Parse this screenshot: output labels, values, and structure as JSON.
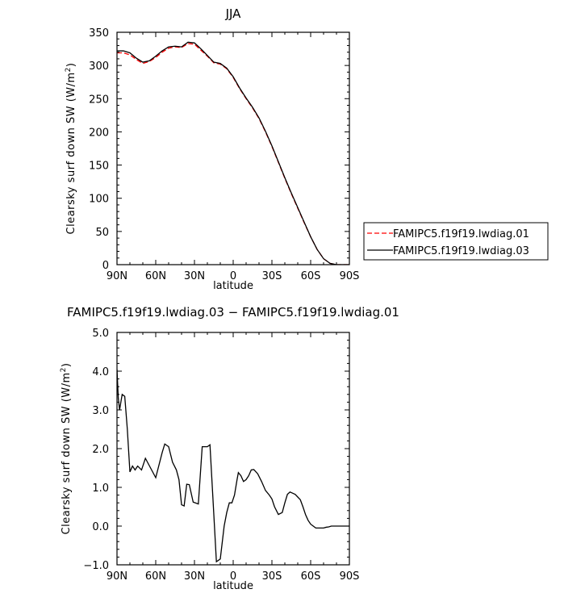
{
  "chart_data": [
    {
      "type": "line",
      "title": "JJA",
      "xlabel": "latitude",
      "ylabel": "Clearsky surf down SW (W/m",
      "ylabel_sup": "2",
      "ylabel_close": ")",
      "xlim": [
        90,
        -90
      ],
      "ylim": [
        0,
        350
      ],
      "xticks": [
        90,
        60,
        30,
        0,
        -30,
        -60,
        -90
      ],
      "xtick_labels": [
        "90N",
        "60N",
        "30N",
        "0",
        "30S",
        "60S",
        "90S"
      ],
      "yticks": [
        0,
        50,
        100,
        150,
        200,
        250,
        300,
        350
      ],
      "ytick_labels": [
        "0",
        "50",
        "100",
        "150",
        "200",
        "250",
        "300",
        "350"
      ],
      "legend": "right",
      "series": [
        {
          "name": "FAMIPC5.f19f19.lwdiag.01",
          "color": "#ff0000",
          "dash": "dashed",
          "x": [
            90,
            85,
            80,
            75,
            70,
            65,
            60,
            55,
            50,
            45,
            40,
            35,
            30,
            25,
            20,
            15,
            10,
            5,
            0,
            -5,
            -10,
            -15,
            -20,
            -25,
            -30,
            -35,
            -40,
            -45,
            -50,
            -55,
            -60,
            -65,
            -70,
            -75,
            -80,
            -85,
            -90
          ],
          "y": [
            319,
            319,
            316,
            309,
            303,
            306,
            312,
            320,
            326,
            328,
            327,
            333,
            332,
            323,
            314,
            304,
            302,
            295,
            282,
            265,
            250,
            236,
            220,
            200,
            178,
            154,
            130,
            107,
            85,
            63,
            42,
            23,
            9,
            2,
            0,
            0,
            0
          ]
        },
        {
          "name": "FAMIPC5.f19f19.lwdiag.03",
          "color": "#000000",
          "dash": "solid",
          "x": [
            90,
            85,
            80,
            75,
            70,
            65,
            60,
            55,
            50,
            45,
            40,
            35,
            30,
            25,
            20,
            15,
            10,
            5,
            0,
            -5,
            -10,
            -15,
            -20,
            -25,
            -30,
            -35,
            -40,
            -45,
            -50,
            -55,
            -60,
            -65,
            -70,
            -75,
            -80,
            -85,
            -90
          ],
          "y": [
            322,
            322,
            319,
            311,
            305,
            307,
            314,
            322,
            328,
            329,
            328,
            335,
            334,
            325,
            315,
            305,
            303,
            296,
            283,
            266,
            251,
            237,
            221,
            201,
            179,
            155,
            131,
            108,
            86,
            64,
            42,
            23,
            9,
            2,
            0,
            0,
            0
          ]
        }
      ]
    },
    {
      "type": "line",
      "title": "FAMIPC5.f19f19.lwdiag.03 − FAMIPC5.f19f19.lwdiag.01",
      "xlabel": "latitude",
      "ylabel": "Clearsky surf down SW (W/m",
      "ylabel_sup": "2",
      "ylabel_close": ")",
      "xlim": [
        90,
        -90
      ],
      "ylim": [
        -1,
        5
      ],
      "xticks": [
        90,
        60,
        30,
        0,
        -30,
        -60,
        -90
      ],
      "xtick_labels": [
        "90N",
        "60N",
        "30N",
        "0",
        "30S",
        "60S",
        "90S"
      ],
      "yticks": [
        -1,
        0,
        1,
        2,
        3,
        4,
        5
      ],
      "ytick_labels": [
        "−1.0",
        "0.0",
        "1.0",
        "2.0",
        "3.0",
        "4.0",
        "5.0"
      ],
      "series": [
        {
          "color": "#000000",
          "dash": "solid",
          "x": [
            90,
            89,
            88,
            87,
            86,
            84,
            82,
            80,
            78,
            76,
            74,
            71,
            68,
            64,
            60,
            55,
            53,
            50,
            47,
            44,
            42,
            40,
            38,
            36,
            34,
            31,
            27,
            24,
            20,
            18,
            16,
            13,
            10,
            7,
            5,
            3,
            1,
            -1,
            -3,
            -4,
            -6,
            -8,
            -10,
            -12,
            -14,
            -16,
            -19,
            -22,
            -25,
            -28,
            -30,
            -32,
            -35,
            -38,
            -40,
            -42,
            -44,
            -46,
            -48,
            -50,
            -52,
            -54,
            -56,
            -58,
            -60,
            -62,
            -64,
            -66,
            -68,
            -70,
            -72,
            -74,
            -76,
            -78,
            -80,
            -84,
            -88,
            -90
          ],
          "y": [
            4.05,
            3.3,
            3.0,
            3.2,
            3.4,
            3.35,
            2.5,
            1.4,
            1.55,
            1.45,
            1.55,
            1.45,
            1.75,
            1.5,
            1.25,
            1.9,
            2.12,
            2.05,
            1.65,
            1.45,
            1.2,
            0.55,
            0.52,
            1.08,
            1.07,
            0.62,
            0.57,
            2.05,
            2.05,
            2.1,
            0.9,
            -0.92,
            -0.85,
            0.0,
            0.35,
            0.6,
            0.6,
            0.8,
            1.2,
            1.38,
            1.3,
            1.15,
            1.2,
            1.3,
            1.45,
            1.46,
            1.35,
            1.15,
            0.92,
            0.8,
            0.7,
            0.5,
            0.3,
            0.35,
            0.6,
            0.82,
            0.88,
            0.85,
            0.82,
            0.75,
            0.68,
            0.5,
            0.3,
            0.15,
            0.05,
            0.0,
            -0.05,
            -0.05,
            -0.05,
            -0.05,
            -0.03,
            -0.02,
            0.0,
            0.0,
            0.0,
            0.0,
            0.0,
            0.0
          ]
        }
      ]
    }
  ]
}
